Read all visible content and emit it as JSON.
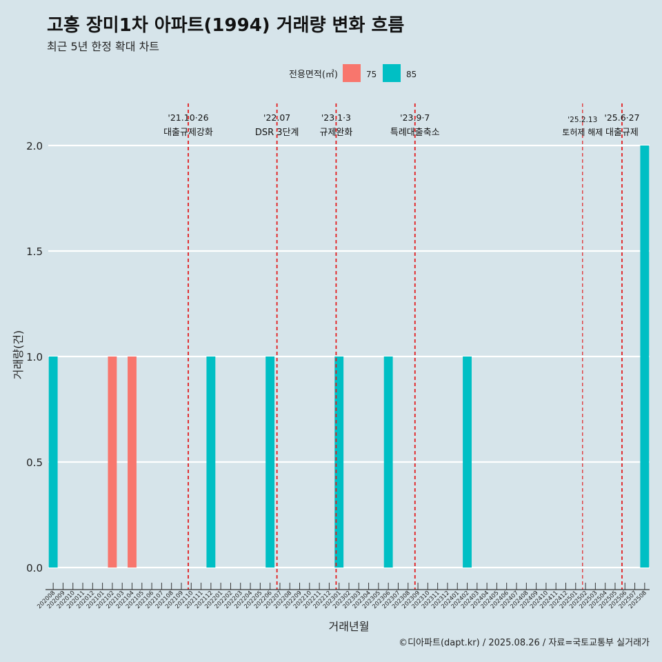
{
  "page": {
    "title": "고흥 장미1차 아파트(1994) 거래량 변화 흐름",
    "subtitle": "최근 5년 한정 확대 차트",
    "footer": "©디아파트(dapt.kr) / 2025.08.26 / 자료=국토교통부 실거래가"
  },
  "chart_data": {
    "type": "bar",
    "xlabel": "거래년월",
    "ylabel": "거래량(건)",
    "ylim": [
      0,
      2
    ],
    "yticks": [
      0.0,
      0.5,
      1.0,
      1.5,
      2.0
    ],
    "ytick_labels": [
      "0.0",
      "0.5",
      "1.0",
      "1.5",
      "2.0"
    ],
    "grid": true,
    "legend": {
      "title": "전용면적(㎡)",
      "placement": "top",
      "items": [
        {
          "label": "75",
          "color": "#f8766d"
        },
        {
          "label": "85",
          "color": "#00bfc4"
        }
      ]
    },
    "categories": [
      "202008",
      "202009",
      "202010",
      "202011",
      "202012",
      "202101",
      "202102",
      "202103",
      "202104",
      "202105",
      "202106",
      "202107",
      "202108",
      "202109",
      "202110",
      "202111",
      "202112",
      "202201",
      "202202",
      "202203",
      "202204",
      "202205",
      "202206",
      "202207",
      "202208",
      "202209",
      "202210",
      "202211",
      "202212",
      "202301",
      "202302",
      "202303",
      "202304",
      "202305",
      "202306",
      "202307",
      "202308",
      "202309",
      "202310",
      "202311",
      "202312",
      "202401",
      "202402",
      "202403",
      "202404",
      "202405",
      "202406",
      "202407",
      "202408",
      "202409",
      "202410",
      "202411",
      "202412",
      "202501",
      "202502",
      "202503",
      "202504",
      "202505",
      "202506",
      "202507",
      "202508"
    ],
    "series": [
      {
        "name": "75",
        "color": "#f8766d",
        "values": [
          0,
          0,
          0,
          0,
          0,
          0,
          1,
          0,
          1,
          0,
          0,
          0,
          0,
          0,
          0,
          0,
          0,
          0,
          0,
          0,
          0,
          0,
          0,
          0,
          0,
          0,
          0,
          0,
          0,
          0,
          0,
          0,
          0,
          0,
          0,
          0,
          0,
          0,
          0,
          0,
          0,
          0,
          0,
          0,
          0,
          0,
          0,
          0,
          0,
          0,
          0,
          0,
          0,
          0,
          0,
          0,
          0,
          0,
          0,
          0,
          0
        ]
      },
      {
        "name": "85",
        "color": "#00bfc4",
        "values": [
          1,
          0,
          0,
          0,
          0,
          0,
          0,
          0,
          0,
          0,
          0,
          0,
          0,
          0,
          0,
          0,
          1,
          0,
          0,
          0,
          0,
          0,
          1,
          0,
          0,
          0,
          0,
          0,
          0,
          1,
          0,
          0,
          0,
          0,
          1,
          0,
          0,
          0,
          0,
          0,
          0,
          0,
          1,
          0,
          0,
          0,
          0,
          0,
          0,
          0,
          0,
          0,
          0,
          0,
          0,
          0,
          0,
          0,
          0,
          0,
          2
        ]
      }
    ],
    "annotations": [
      {
        "x": 14.2,
        "date": "'21.10·26",
        "text": "대출규제강화",
        "small": false
      },
      {
        "x": 23.2,
        "date": "'22.07",
        "text": "DSR 3단계",
        "small": false
      },
      {
        "x": 29.2,
        "date": "'23.1·3",
        "text": "규제완화",
        "small": false
      },
      {
        "x": 37.2,
        "date": "'23.9·7",
        "text": "특례대출축소",
        "small": false
      },
      {
        "x": 54.2,
        "date": "'25.2.13",
        "text": "토허제 해제",
        "small": true
      },
      {
        "x": 58.2,
        "date": "'25.6·27",
        "text": "대출규제",
        "small": false
      }
    ]
  }
}
